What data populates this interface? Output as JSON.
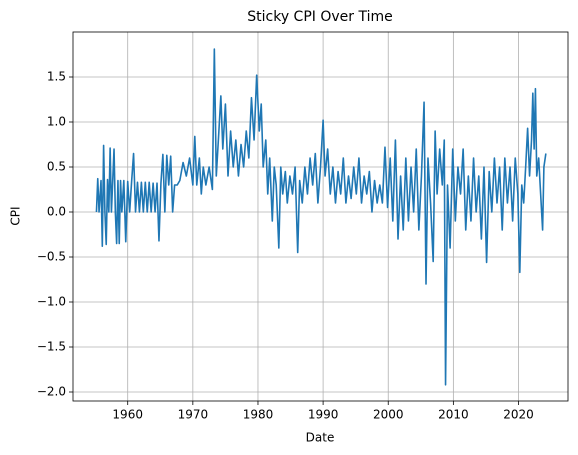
{
  "chart_data": {
    "type": "line",
    "title": "Sticky CPI Over Time",
    "xlabel": "Date",
    "ylabel": "CPI",
    "color": "#1f77b4",
    "grid": true,
    "xlim": [
      1951.6,
      2027.6
    ],
    "ylim": [
      -2.1,
      2.0
    ],
    "xticks": [
      1960,
      1970,
      1980,
      1990,
      2000,
      2010,
      2020
    ],
    "yticks": [
      {
        "value": -2.0,
        "label": "−2.0"
      },
      {
        "value": -1.5,
        "label": "−1.5"
      },
      {
        "value": -1.0,
        "label": "−1.0"
      },
      {
        "value": -0.5,
        "label": "−0.5"
      },
      {
        "value": 0.0,
        "label": "0.0"
      },
      {
        "value": 0.5,
        "label": "0.5"
      },
      {
        "value": 1.0,
        "label": "1.0"
      },
      {
        "value": 1.5,
        "label": "1.5"
      }
    ],
    "x": [
      1955.2,
      1955.4,
      1955.6,
      1955.9,
      1956.1,
      1956.3,
      1956.5,
      1956.7,
      1956.9,
      1957.1,
      1957.3,
      1957.5,
      1957.7,
      1957.9,
      1958.1,
      1958.3,
      1958.5,
      1958.7,
      1958.9,
      1959.1,
      1959.4,
      1959.7,
      1960,
      1960.3,
      1960.6,
      1960.9,
      1961.2,
      1961.5,
      1961.8,
      1962.1,
      1962.4,
      1962.7,
      1963,
      1963.3,
      1963.6,
      1963.9,
      1964.2,
      1964.5,
      1964.8,
      1965.1,
      1965.4,
      1965.7,
      1966,
      1966.3,
      1966.6,
      1966.9,
      1967.2,
      1967.6,
      1968,
      1968.5,
      1969,
      1969.5,
      1970,
      1970.3,
      1970.6,
      1971,
      1971.3,
      1971.6,
      1972,
      1972.5,
      1973,
      1973.3,
      1973.6,
      1974,
      1974.3,
      1974.6,
      1975,
      1975.4,
      1975.8,
      1976.2,
      1976.6,
      1977,
      1977.4,
      1977.8,
      1978.2,
      1978.6,
      1979,
      1979.4,
      1979.8,
      1980.2,
      1980.5,
      1980.8,
      1981.2,
      1981.5,
      1981.8,
      1982.2,
      1982.5,
      1982.8,
      1983.2,
      1983.5,
      1983.8,
      1984.2,
      1984.5,
      1984.9,
      1985.3,
      1985.7,
      1986.1,
      1986.4,
      1986.8,
      1987.2,
      1987.6,
      1988,
      1988.4,
      1988.8,
      1989.2,
      1989.6,
      1990,
      1990.3,
      1990.7,
      1991.1,
      1991.5,
      1991.9,
      1992.3,
      1992.7,
      1993.1,
      1993.5,
      1993.9,
      1994.3,
      1994.7,
      1995.1,
      1995.5,
      1995.9,
      1996.3,
      1996.7,
      1997.1,
      1997.5,
      1997.9,
      1998.3,
      1998.7,
      1999.1,
      1999.5,
      1999.9,
      2000.3,
      2000.7,
      2001.1,
      2001.5,
      2001.9,
      2002.3,
      2002.7,
      2003.1,
      2003.5,
      2003.9,
      2004.3,
      2004.7,
      2005.1,
      2005.5,
      2005.8,
      2006.1,
      2006.5,
      2006.9,
      2007.2,
      2007.5,
      2007.9,
      2008.3,
      2008.6,
      2008.8,
      2009.1,
      2009.5,
      2009.9,
      2010.3,
      2010.7,
      2011.1,
      2011.5,
      2011.9,
      2012.3,
      2012.7,
      2013.1,
      2013.5,
      2013.9,
      2014.3,
      2014.7,
      2015.1,
      2015.5,
      2015.9,
      2016.3,
      2016.7,
      2017.1,
      2017.5,
      2017.9,
      2018.3,
      2018.7,
      2019.1,
      2019.5,
      2019.9,
      2020.2,
      2020.5,
      2020.8,
      2021.1,
      2021.4,
      2021.7,
      2022,
      2022.2,
      2022.4,
      2022.6,
      2022.8,
      2023.1,
      2023.4,
      2023.7,
      2023.9,
      2024.2
    ],
    "values": [
      0,
      0.37,
      0,
      0.35,
      -0.38,
      0.74,
      0,
      -0.36,
      0.36,
      0,
      0.71,
      0,
      0.35,
      0.7,
      0,
      -0.35,
      0.35,
      -0.35,
      0.35,
      0,
      0.35,
      -0.33,
      0.34,
      0,
      0.34,
      0.65,
      0,
      0.33,
      0,
      0.33,
      0,
      0.33,
      0,
      0.33,
      0,
      0.32,
      0,
      0.32,
      -0.32,
      0.32,
      0.64,
      0,
      0.63,
      0.3,
      0.62,
      0,
      0.3,
      0.3,
      0.35,
      0.55,
      0.4,
      0.6,
      0.3,
      0.84,
      0.3,
      0.6,
      0.2,
      0.5,
      0.3,
      0.5,
      0.25,
      1.81,
      0.4,
      0.9,
      1.29,
      0.7,
      1.2,
      0.4,
      0.9,
      0.5,
      0.8,
      0.4,
      0.75,
      0.5,
      0.9,
      0.6,
      1.27,
      0.8,
      1.52,
      0.9,
      1.2,
      0.5,
      0.8,
      0.2,
      0.6,
      -0.1,
      0.5,
      0.3,
      -0.4,
      0.5,
      0.2,
      0.45,
      0.1,
      0.4,
      0.2,
      0.5,
      -0.45,
      0.35,
      0.1,
      0.5,
      0.2,
      0.6,
      0.3,
      0.65,
      0.1,
      0.5,
      1.02,
      0.4,
      0.7,
      0.2,
      0.5,
      0.1,
      0.45,
      0.2,
      0.6,
      0.1,
      0.4,
      0.15,
      0.5,
      0.2,
      0.6,
      0.1,
      0.4,
      0.2,
      0.45,
      0,
      0.35,
      0.1,
      0.3,
      0.1,
      0.72,
      0.05,
      0.6,
      -0.1,
      0.8,
      -0.3,
      0.4,
      -0.2,
      0.6,
      -0.1,
      0.5,
      0,
      0.7,
      -0.2,
      0.4,
      1.22,
      -0.8,
      0.6,
      0.1,
      -0.55,
      0.9,
      0.2,
      0.7,
      0.3,
      0.8,
      -1.92,
      0.3,
      -0.4,
      0.7,
      -0.1,
      0.5,
      0.2,
      0.7,
      -0.2,
      0.4,
      -0.1,
      0.6,
      0,
      0.4,
      -0.3,
      0.5,
      -0.56,
      0.45,
      0,
      0.6,
      0.1,
      0.5,
      -0.2,
      0.6,
      0.1,
      0.5,
      -0.1,
      0.6,
      0.2,
      -0.67,
      0.3,
      0.1,
      0.5,
      0.93,
      0.4,
      0.8,
      1.32,
      0.7,
      1.37,
      0.4,
      0.6,
      0.2,
      -0.2,
      0.5,
      0.65
    ]
  }
}
